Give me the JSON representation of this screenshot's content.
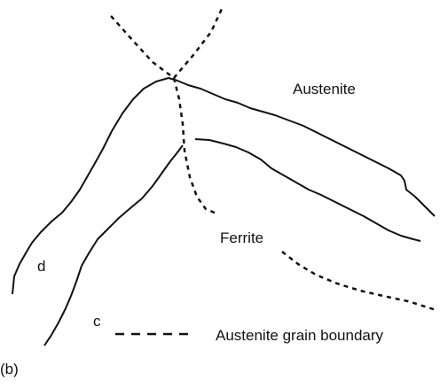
{
  "labels": {
    "austenite": "Austenite",
    "ferrite": "Ferrite",
    "curve_d": "d",
    "curve_c": "c"
  },
  "legend": {
    "label": "Austenite grain boundary"
  },
  "panel": "(b)"
}
